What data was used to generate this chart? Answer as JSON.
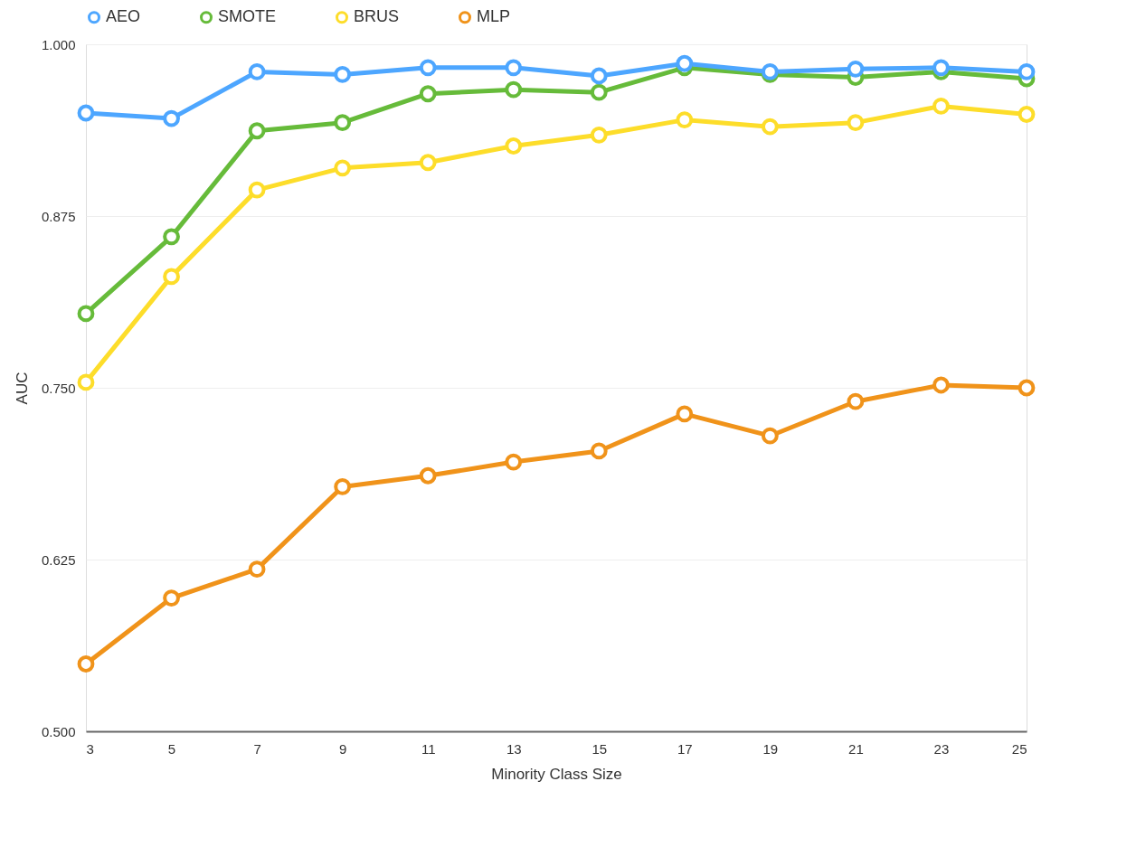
{
  "chart_data": {
    "type": "line",
    "xlabel": "Minority Class Size",
    "ylabel": "AUC",
    "x": [
      3,
      5,
      7,
      9,
      11,
      13,
      15,
      17,
      19,
      21,
      23,
      25
    ],
    "xlim": [
      3,
      25
    ],
    "xticks": [
      3,
      5,
      7,
      9,
      11,
      13,
      15,
      17,
      19,
      21,
      23,
      25
    ],
    "ylim": [
      0.5,
      1.0
    ],
    "yticks": [
      {
        "value": 0.5,
        "label": "0.500"
      },
      {
        "value": 0.625,
        "label": "0.625"
      },
      {
        "value": 0.75,
        "label": "0.750"
      },
      {
        "value": 0.875,
        "label": "0.875"
      },
      {
        "value": 1.0,
        "label": "1.000"
      }
    ],
    "grid": "y",
    "legend": "top",
    "marker": "circle",
    "line_style": "solid",
    "series": [
      {
        "name": "AEO",
        "color": "#4da6ff",
        "values": [
          0.95,
          0.946,
          0.98,
          0.978,
          0.983,
          0.983,
          0.977,
          0.986,
          0.98,
          0.982,
          0.983,
          0.98
        ]
      },
      {
        "name": "SMOTE",
        "color": "#66bb3a",
        "values": [
          0.804,
          0.86,
          0.937,
          0.943,
          0.964,
          0.967,
          0.965,
          0.983,
          0.978,
          0.976,
          0.98,
          0.975
        ]
      },
      {
        "name": "BRUS",
        "color": "#fddd2a",
        "values": [
          0.754,
          0.831,
          0.894,
          0.91,
          0.914,
          0.926,
          0.934,
          0.945,
          0.94,
          0.943,
          0.955,
          0.949
        ]
      },
      {
        "name": "MLP",
        "color": "#f0931a",
        "values": [
          0.549,
          0.597,
          0.618,
          0.678,
          0.686,
          0.696,
          0.704,
          0.731,
          0.715,
          0.74,
          0.752,
          0.75
        ]
      }
    ]
  }
}
